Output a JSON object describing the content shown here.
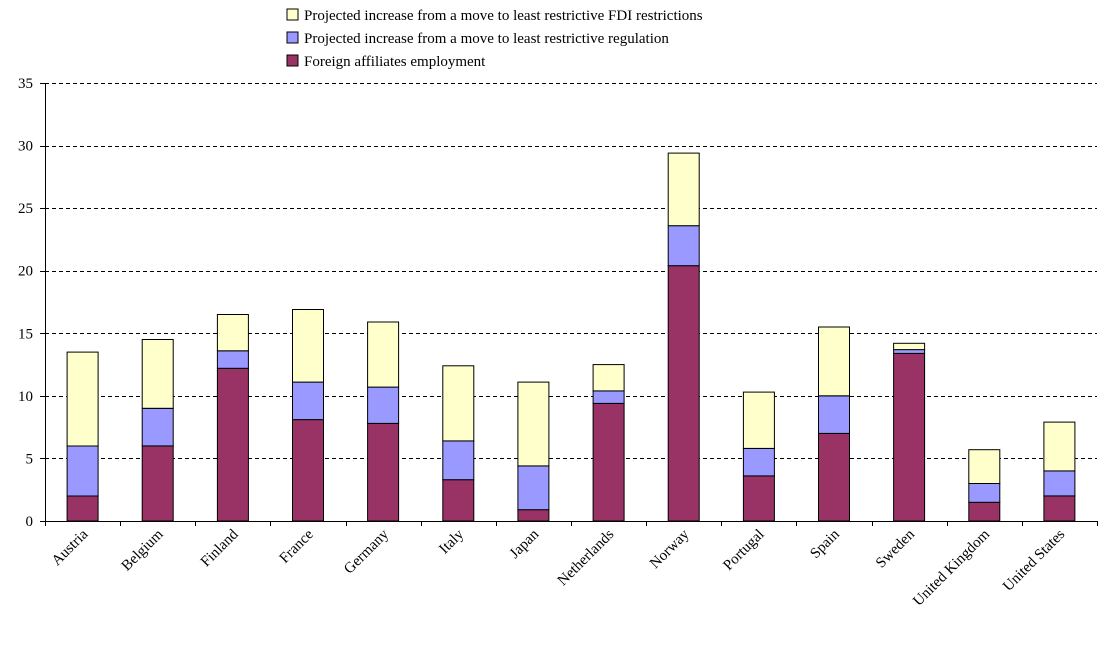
{
  "chart_data": {
    "type": "bar",
    "stacked": true,
    "categories": [
      "Austria",
      "Belgium",
      "Finland",
      "France",
      "Germany",
      "Italy",
      "Japan",
      "Netherlands",
      "Norway",
      "Portugal",
      "Spain",
      "Sweden",
      "United Kingdom",
      "United States"
    ],
    "series": [
      {
        "name": "Foreign affiliates employment",
        "color": "#993366",
        "values": [
          2.0,
          6.0,
          12.2,
          8.1,
          7.8,
          3.3,
          0.9,
          9.4,
          20.4,
          3.6,
          7.0,
          13.4,
          1.5,
          2.0
        ]
      },
      {
        "name": "Projected increase from a move to least restrictive regulation",
        "color": "#9999ff",
        "values": [
          4.0,
          3.0,
          1.4,
          3.0,
          2.9,
          3.1,
          3.5,
          1.0,
          3.2,
          2.2,
          3.0,
          0.3,
          1.5,
          2.0
        ]
      },
      {
        "name": "Projected increase from a move to least restrictive FDI restrictions",
        "color": "#ffffcc",
        "values": [
          7.5,
          5.5,
          2.9,
          5.8,
          5.2,
          6.0,
          6.7,
          2.1,
          5.8,
          4.5,
          5.5,
          0.5,
          2.7,
          3.9
        ]
      }
    ],
    "legend_order": [
      2,
      1,
      0
    ],
    "legend_position": "top-center",
    "ylim": [
      0,
      35
    ],
    "yticks": [
      "0",
      "5",
      "10",
      "15",
      "20",
      "25",
      "30",
      "35"
    ],
    "ytick_values": [
      0,
      5,
      10,
      15,
      20,
      25,
      30,
      35
    ],
    "grid": "horizontal-dashed",
    "title": "",
    "xlabel": "",
    "ylabel": ""
  }
}
